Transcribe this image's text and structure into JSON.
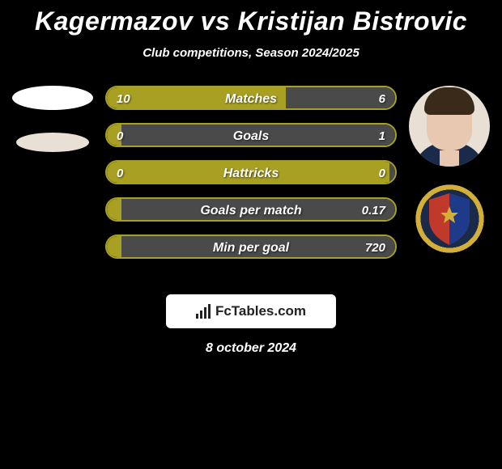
{
  "title": "Kagermazov vs Kristijan Bistrovic",
  "subtitle": "Club competitions, Season 2024/2025",
  "date": "8 october 2024",
  "footer_brand": "FcTables.com",
  "colors": {
    "left_bar": "#a8a023",
    "right_bar": "#4a4a4a",
    "left_border": "#a8a023",
    "badge_bg": "#1a2a4a",
    "badge_ring": "#d4af37",
    "shield_top": "#c0392b",
    "shield_bottom": "#1e3a8a",
    "shield_star": "#d4af37"
  },
  "stats": [
    {
      "label": "Matches",
      "left_val": "10",
      "right_val": "6",
      "left_pct": 62,
      "right_pct": 38
    },
    {
      "label": "Goals",
      "left_val": "0",
      "right_val": "1",
      "left_pct": 5,
      "right_pct": 95
    },
    {
      "label": "Hattricks",
      "left_val": "0",
      "right_val": "0",
      "left_pct": 98,
      "right_pct": 2
    },
    {
      "label": "Goals per match",
      "left_val": "",
      "right_val": "0.17",
      "left_pct": 5,
      "right_pct": 95
    },
    {
      "label": "Min per goal",
      "left_val": "",
      "right_val": "720",
      "left_pct": 5,
      "right_pct": 95
    }
  ]
}
